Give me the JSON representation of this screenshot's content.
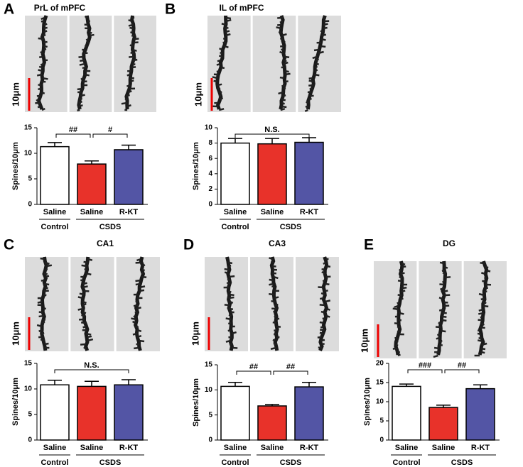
{
  "chart_data": [
    {
      "type": "bar",
      "panel": "A",
      "title": "PrL of mPFC",
      "scale_bar": "10μm",
      "y_label": "Spines/10μm",
      "categories": [
        "Saline",
        "Saline",
        "R-KT"
      ],
      "values": [
        11.3,
        7.9,
        10.7
      ],
      "errors": [
        0.8,
        0.6,
        0.9
      ],
      "colors": [
        "#ffffff",
        "#e8322a",
        "#5355a5"
      ],
      "ylim": [
        0,
        15
      ],
      "yticks": [
        0,
        5,
        10,
        15
      ],
      "groups": [
        {
          "label": "Control",
          "span": [
            0,
            0
          ]
        },
        {
          "label": "CSDS",
          "span": [
            1,
            2
          ]
        }
      ],
      "significance": [
        {
          "label": "##",
          "pair": [
            0,
            1
          ]
        },
        {
          "label": "#",
          "pair": [
            1,
            2
          ]
        }
      ]
    },
    {
      "type": "bar",
      "panel": "B",
      "title": "IL of mPFC",
      "scale_bar": "10μm",
      "y_label": "Spines/10μm",
      "categories": [
        "Saline",
        "Saline",
        "R-KT"
      ],
      "values": [
        8.0,
        7.9,
        8.1
      ],
      "errors": [
        0.6,
        0.7,
        0.6
      ],
      "colors": [
        "#ffffff",
        "#e8322a",
        "#5355a5"
      ],
      "ylim": [
        0,
        10
      ],
      "yticks": [
        0,
        2,
        4,
        6,
        8,
        10
      ],
      "groups": [
        {
          "label": "Control",
          "span": [
            0,
            0
          ]
        },
        {
          "label": "CSDS",
          "span": [
            1,
            2
          ]
        }
      ],
      "significance": [
        {
          "label": "N.S.",
          "pair": [
            0,
            2
          ]
        }
      ]
    },
    {
      "type": "bar",
      "panel": "C",
      "title": "CA1",
      "scale_bar": "10μm",
      "y_label": "Spines/10μm",
      "categories": [
        "Saline",
        "Saline",
        "R-KT"
      ],
      "values": [
        10.8,
        10.5,
        10.8
      ],
      "errors": [
        0.9,
        1.0,
        1.0
      ],
      "colors": [
        "#ffffff",
        "#e8322a",
        "#5355a5"
      ],
      "ylim": [
        0,
        15
      ],
      "yticks": [
        0,
        5,
        10,
        15
      ],
      "groups": [
        {
          "label": "Control",
          "span": [
            0,
            0
          ]
        },
        {
          "label": "CSDS",
          "span": [
            1,
            2
          ]
        }
      ],
      "significance": [
        {
          "label": "N.S.",
          "pair": [
            0,
            2
          ]
        }
      ]
    },
    {
      "type": "bar",
      "panel": "D",
      "title": "CA3",
      "scale_bar": "10μm",
      "y_label": "Spines/10μm",
      "categories": [
        "Saline",
        "Saline",
        "R-KT"
      ],
      "values": [
        10.7,
        6.8,
        10.6
      ],
      "errors": [
        0.8,
        0.3,
        0.9
      ],
      "colors": [
        "#ffffff",
        "#e8322a",
        "#5355a5"
      ],
      "ylim": [
        0,
        15
      ],
      "yticks": [
        0,
        5,
        10,
        15
      ],
      "groups": [
        {
          "label": "Control",
          "span": [
            0,
            0
          ]
        },
        {
          "label": "CSDS",
          "span": [
            1,
            2
          ]
        }
      ],
      "significance": [
        {
          "label": "##",
          "pair": [
            0,
            1
          ]
        },
        {
          "label": "##",
          "pair": [
            1,
            2
          ]
        }
      ]
    },
    {
      "type": "bar",
      "panel": "E",
      "title": "DG",
      "scale_bar": "10μm",
      "y_label": "Spines/10μm",
      "categories": [
        "Saline",
        "Saline",
        "R-KT"
      ],
      "values": [
        14.0,
        8.5,
        13.4
      ],
      "errors": [
        0.6,
        0.6,
        1.0
      ],
      "colors": [
        "#ffffff",
        "#e8322a",
        "#5355a5"
      ],
      "ylim": [
        0,
        20
      ],
      "yticks": [
        0,
        5,
        10,
        15,
        20
      ],
      "groups": [
        {
          "label": "Control",
          "span": [
            0,
            0
          ]
        },
        {
          "label": "CSDS",
          "span": [
            1,
            2
          ]
        }
      ],
      "significance": [
        {
          "label": "###",
          "pair": [
            0,
            1
          ]
        },
        {
          "label": "##",
          "pair": [
            1,
            2
          ]
        }
      ]
    }
  ]
}
